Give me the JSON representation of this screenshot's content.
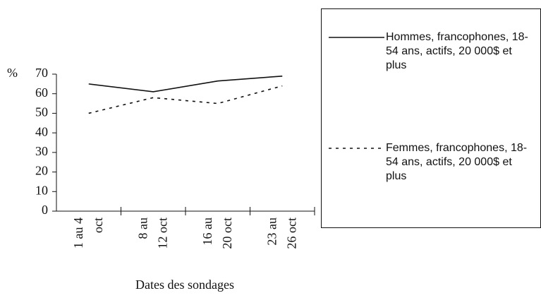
{
  "chart_data": {
    "type": "line",
    "ylabel": "%",
    "xlabel": "Dates des sondages",
    "categories": [
      [
        "1 au 4",
        "oct"
      ],
      [
        "8 au",
        "12 oct"
      ],
      [
        "16 au",
        "20 oct"
      ],
      [
        "23 au",
        "26 oct"
      ]
    ],
    "series": [
      {
        "name": "Hommes, francophones, 18-54 ans, actifs, 20 000$ et plus",
        "color": "#111111",
        "dash": "solid",
        "values": [
          65,
          61,
          66.5,
          69
        ]
      },
      {
        "name": "Femmes, francophones, 18-54 ans, actifs, 20 000$ et plus",
        "color": "#111111",
        "dash": "dotted",
        "values": [
          50,
          58,
          55,
          64
        ]
      }
    ],
    "ylim": [
      0,
      70
    ],
    "yticks": [
      0,
      10,
      20,
      30,
      40,
      50,
      60,
      70
    ]
  }
}
